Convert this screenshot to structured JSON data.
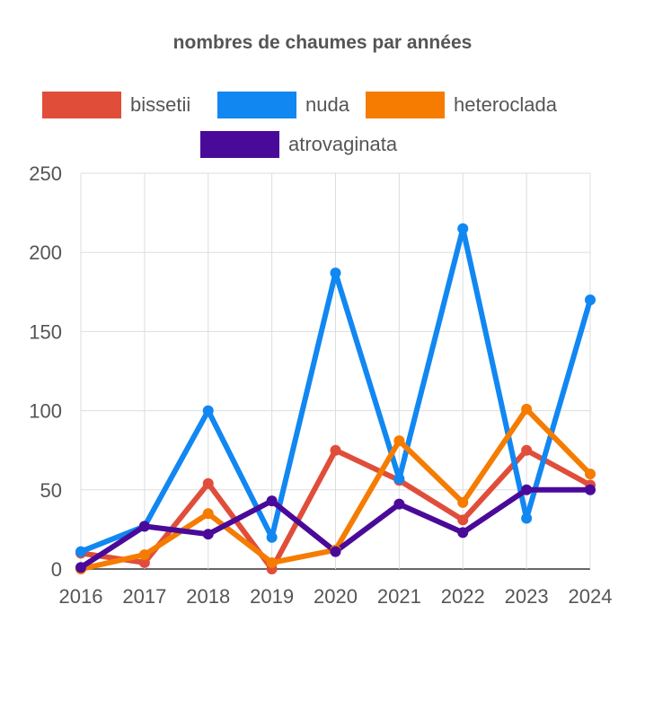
{
  "chart_data": {
    "type": "line",
    "title": "nombres de chaumes par années",
    "xlabel": "",
    "ylabel": "",
    "legend_position": "top",
    "grid": true,
    "ylim": [
      0,
      250
    ],
    "y_ticks": [
      "0",
      "50",
      "100",
      "150",
      "200",
      "250"
    ],
    "categories": [
      "2016",
      "2017",
      "2018",
      "2019",
      "2020",
      "2021",
      "2022",
      "2023",
      "2024"
    ],
    "series": [
      {
        "name": "bissetii",
        "color": "#e04e3a",
        "values": [
          10,
          4,
          54,
          0,
          75,
          56,
          31,
          75,
          53
        ]
      },
      {
        "name": "nuda",
        "color": "#1187f2",
        "values": [
          11,
          27,
          100,
          20,
          187,
          57,
          215,
          32,
          170
        ]
      },
      {
        "name": "heteroclada",
        "color": "#f57c00",
        "values": [
          0,
          9,
          35,
          4,
          12,
          81,
          42,
          101,
          60
        ]
      },
      {
        "name": "atrovaginata",
        "color": "#4a0a99",
        "values": [
          1,
          27,
          22,
          43,
          11,
          41,
          23,
          50,
          50
        ]
      }
    ]
  }
}
